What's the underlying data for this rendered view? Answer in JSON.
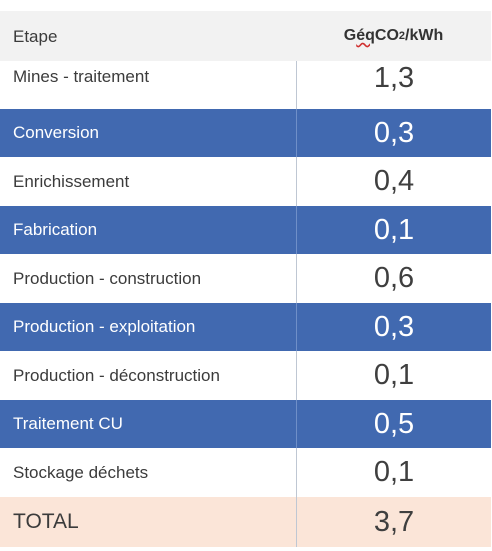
{
  "table": {
    "header": {
      "step_label": "Etape",
      "value_prefix": "G ",
      "value_wavy": "éq",
      "value_mid": " CO",
      "value_sub": "2",
      "value_suffix": "/kWh"
    },
    "rows": [
      {
        "label": "Mines - traitement",
        "value": "1,3",
        "style": "light"
      },
      {
        "label": "Conversion",
        "value": "0,3",
        "style": "blue"
      },
      {
        "label": "Enrichissement",
        "value": "0,4",
        "style": "light"
      },
      {
        "label": "Fabrication",
        "value": "0,1",
        "style": "blue"
      },
      {
        "label": "Production - construction",
        "value": "0,6",
        "style": "light"
      },
      {
        "label": "Production - exploitation",
        "value": "0,3",
        "style": "blue"
      },
      {
        "label": "Production - déconstruction",
        "value": "0,1",
        "style": "light"
      },
      {
        "label": "Traitement CU",
        "value": "0,5",
        "style": "blue"
      },
      {
        "label": "Stockage déchets",
        "value": "0,1",
        "style": "light"
      }
    ],
    "total": {
      "label": "TOTAL",
      "value": "3,7"
    }
  },
  "colors": {
    "header_bg": "#f2f2f2",
    "blue_row_bg": "#4169b0",
    "total_bg": "#fbe5d8"
  }
}
